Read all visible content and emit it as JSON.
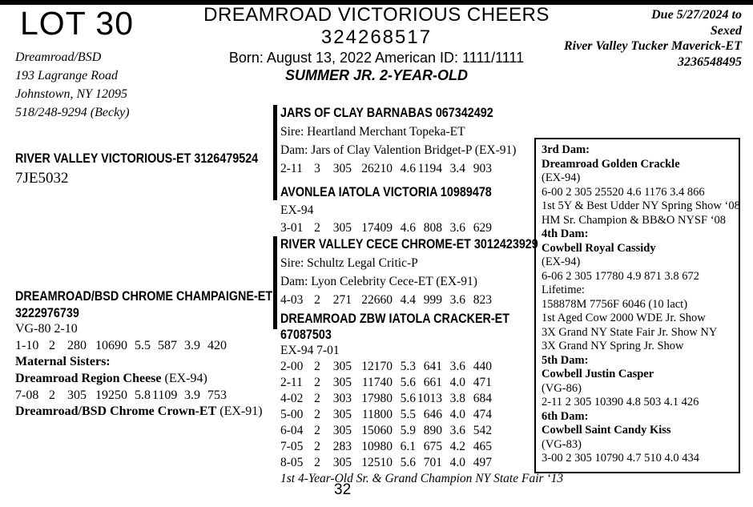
{
  "page": {
    "lot": "LOT 30",
    "page_number": "32"
  },
  "consignor": {
    "name": "Dreamroad/BSD",
    "address1": "193 Lagrange Road",
    "address2": "Johnstown, NY 12095",
    "phone": "518/248-9294 (Becky)"
  },
  "title": {
    "name": "DREAMROAD VICTORIOUS CHEERS",
    "id": "324268517",
    "born_line": "Born: August 13, 2022 American ID: 1111/1111",
    "class_line": "SUMMER JR. 2-YEAR-OLD"
  },
  "due": {
    "line1": "Due 5/27/2024 to",
    "line2": "Sexed",
    "line3": "River Valley Tucker Maverick-ET",
    "line4": "3236548495"
  },
  "sire": {
    "name": "RIVER VALLEY VICTORIOUS-ET 3126479524",
    "code": "7JE5032"
  },
  "dam": {
    "name_line1": "DREAMROAD/BSD CHROME CHAMPAIGNE-ET",
    "name_line2": "3222976739",
    "score": "VG-80 2-10",
    "rows": [
      [
        "1-10",
        "2",
        "280",
        "10690",
        "5.5",
        "587",
        "3.9",
        "420"
      ]
    ],
    "maternal_label": "Maternal Sisters:",
    "sister1_name": "Dreamroad Region Cheese",
    "sister1_score": "(EX-94)",
    "sister1_rows": [
      [
        "7-08",
        "2",
        "305",
        "19250",
        "5.8",
        "1109",
        "3.9",
        "753"
      ]
    ],
    "sister2_name": "Dreamroad/BSD Chrome Crown-ET",
    "sister2_score": "(EX-91)"
  },
  "pedigree": {
    "block1": {
      "name": "JARS OF CLAY BARNABAS 067342492",
      "sire": "Sire: Heartland Merchant Topeka-ET",
      "dam": "Dam: Jars of Clay Valention Bridget-P (EX-91)",
      "rows": [
        [
          "2-11",
          "3",
          "305",
          "26210",
          "4.6",
          "1194",
          "3.4",
          "903"
        ]
      ]
    },
    "block2": {
      "name": "AVONLEA IATOLA VICTORIA 10989478",
      "score": "EX-94",
      "rows": [
        [
          "3-01",
          "2",
          "305",
          "17409",
          "4.6",
          "808",
          "3.6",
          "629"
        ]
      ]
    },
    "block3": {
      "name": "RIVER VALLEY CECE CHROME-ET 3012423929",
      "sire": "Sire: Schultz Legal Critic-P",
      "dam": "Dam: Lyon Celebrity Cece-ET (EX-91)",
      "rows": [
        [
          "4-03",
          "2",
          "271",
          "22660",
          "4.4",
          "999",
          "3.6",
          "823"
        ]
      ]
    },
    "block4": {
      "name_line1": "DREAMROAD ZBW IATOLA CRACKER-ET",
      "name_line2": "67087503",
      "score": "EX-94 7-01",
      "rows": [
        [
          "2-00",
          "2",
          "305",
          "12170",
          "5.3",
          "641",
          "3.6",
          "440"
        ],
        [
          "2-11",
          "2",
          "305",
          "11740",
          "5.6",
          "661",
          "4.0",
          "471"
        ],
        [
          "4-02",
          "2",
          "303",
          "17980",
          "5.6",
          "1013",
          "3.8",
          "684"
        ],
        [
          "5-00",
          "2",
          "305",
          "11800",
          "5.5",
          "646",
          "4.0",
          "474"
        ],
        [
          "6-04",
          "2",
          "305",
          "15060",
          "5.9",
          "890",
          "3.6",
          "542"
        ],
        [
          "7-05",
          "2",
          "283",
          "10980",
          "6.1",
          "675",
          "4.2",
          "465"
        ],
        [
          "8-05",
          "2",
          "305",
          "12510",
          "5.6",
          "701",
          "4.0",
          "497"
        ]
      ],
      "award": "1st 4-Year-Old Sr. & Grand Champion NY State Fair ‘13"
    }
  },
  "dams_box": {
    "lines": [
      {
        "t": "3rd Dam:",
        "b": true
      },
      {
        "t": "Dreamroad Golden Crackle",
        "b": true
      },
      {
        "t": "(EX-94)"
      },
      {
        "t": "6-00 2 305 25520 4.6 1176 3.4 866"
      },
      {
        "t": "1st 5Y & Best Udder NY Spring Show ‘08"
      },
      {
        "t": "HM Sr. Champion & BB&O NYSF ‘08"
      },
      {
        "t": "4th Dam:",
        "b": true
      },
      {
        "t": "Cowbell Royal Cassidy",
        "b": true
      },
      {
        "t": "(EX-94)"
      },
      {
        "t": "6-06 2 305 17780 4.9 871 3.8 672"
      },
      {
        "t": "Lifetime:"
      },
      {
        "t": "158878M 7756F 6046 (10 lact)"
      },
      {
        "t": "1st Aged Cow 2000 WDE Jr. Show"
      },
      {
        "t": "3X Grand NY State Fair Jr. Show NY"
      },
      {
        "t": "3X Grand NY Spring Jr. Show"
      },
      {
        "t": "5th Dam:",
        "b": true
      },
      {
        "t": "Cowbell Justin Casper",
        "b": true
      },
      {
        "t": "(VG-86)"
      },
      {
        "t": "2-11 2 305 10390 4.8 503 4.1 426"
      },
      {
        "t": "6th Dam:",
        "b": true
      },
      {
        "t": "Cowbell Saint Candy Kiss",
        "b": true
      },
      {
        "t": "(VG-83)"
      },
      {
        "t": "3-00 2 305 10790 4.7 510 4.0 434"
      }
    ]
  }
}
